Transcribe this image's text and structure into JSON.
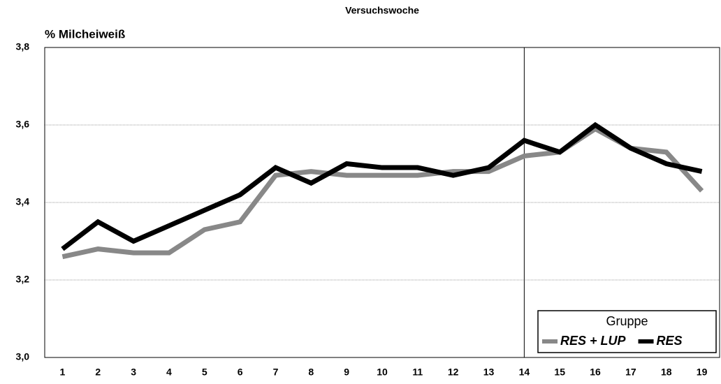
{
  "chart_data": {
    "type": "line",
    "title": "Versuchswoche",
    "y_label": "% Milcheiweiß",
    "categories": [
      "1",
      "2",
      "3",
      "4",
      "5",
      "6",
      "7",
      "8",
      "9",
      "10",
      "11",
      "12",
      "13",
      "14",
      "15",
      "16",
      "17",
      "18",
      "19"
    ],
    "series": [
      {
        "name": "RES + LUP",
        "color": "#888888",
        "values": [
          3.26,
          3.28,
          3.27,
          3.27,
          3.33,
          3.35,
          3.47,
          3.48,
          3.47,
          3.47,
          3.47,
          3.48,
          3.48,
          3.52,
          3.53,
          3.59,
          3.54,
          3.53,
          3.43
        ]
      },
      {
        "name": "RES",
        "color": "#000000",
        "values": [
          3.28,
          3.35,
          3.3,
          3.34,
          3.38,
          3.42,
          3.49,
          3.45,
          3.5,
          3.49,
          3.49,
          3.47,
          3.49,
          3.56,
          3.53,
          3.6,
          3.54,
          3.5,
          3.48
        ]
      }
    ],
    "ylim": [
      3.0,
      3.8
    ],
    "yticks": [
      {
        "value": 3.0,
        "label": "3,0"
      },
      {
        "value": 3.2,
        "label": "3,2"
      },
      {
        "value": 3.4,
        "label": "3,4"
      },
      {
        "value": 3.6,
        "label": "3,6"
      },
      {
        "value": 3.8,
        "label": "3,8"
      }
    ],
    "grid": true,
    "reference_line": "14",
    "legend_title": "Gruppe",
    "legend": "lower right"
  }
}
